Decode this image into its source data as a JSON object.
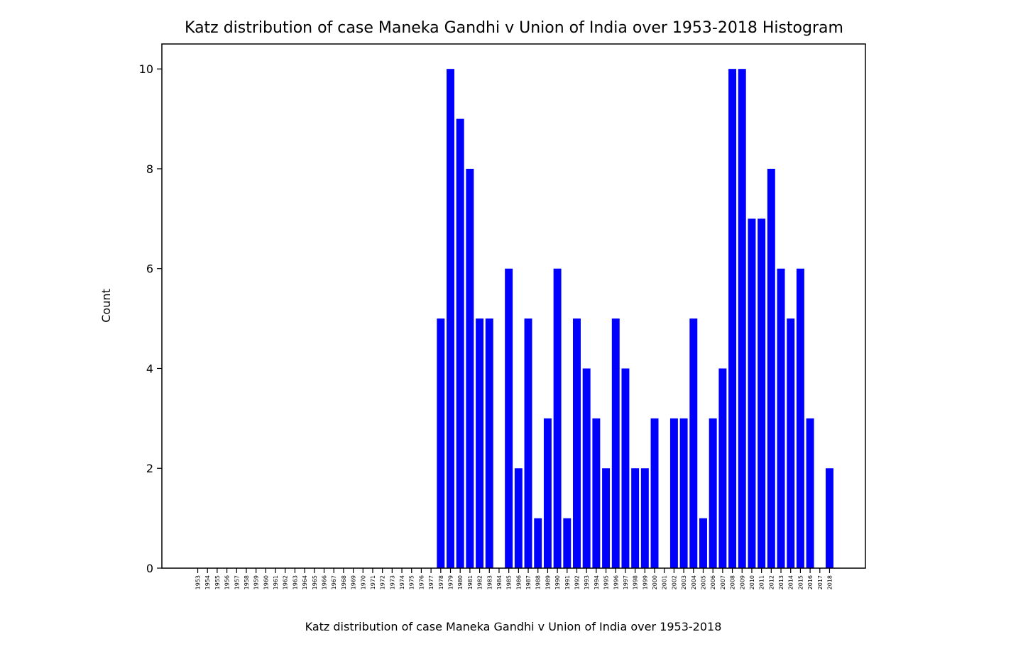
{
  "chart_data": {
    "type": "bar",
    "title": "Katz distribution of case Maneka Gandhi v Union of India over 1953-2018 Histogram",
    "xlabel": "Katz distribution of case Maneka Gandhi v Union of India over 1953-2018",
    "ylabel": "Count",
    "ylim": [
      0,
      10.5
    ],
    "yticks": [
      0,
      2,
      4,
      6,
      8,
      10
    ],
    "bar_color": "#0000ff",
    "grid": false,
    "categories": [
      "1953",
      "1954",
      "1955",
      "1956",
      "1957",
      "1958",
      "1959",
      "1960",
      "1961",
      "1962",
      "1963",
      "1964",
      "1965",
      "1966",
      "1967",
      "1968",
      "1969",
      "1970",
      "1971",
      "1972",
      "1973",
      "1974",
      "1975",
      "1976",
      "1977",
      "1978",
      "1979",
      "1980",
      "1981",
      "1982",
      "1983",
      "1984",
      "1985",
      "1986",
      "1987",
      "1988",
      "1989",
      "1990",
      "1991",
      "1992",
      "1993",
      "1994",
      "1995",
      "1996",
      "1997",
      "1998",
      "1999",
      "2000",
      "2001",
      "2002",
      "2003",
      "2004",
      "2005",
      "2006",
      "2007",
      "2008",
      "2009",
      "2010",
      "2011",
      "2012",
      "2013",
      "2014",
      "2015",
      "2016",
      "2017",
      "2018"
    ],
    "values": [
      0,
      0,
      0,
      0,
      0,
      0,
      0,
      0,
      0,
      0,
      0,
      0,
      0,
      0,
      0,
      0,
      0,
      0,
      0,
      0,
      0,
      0,
      0,
      0,
      0,
      5,
      10,
      9,
      8,
      5,
      5,
      0,
      6,
      2,
      5,
      1,
      3,
      6,
      1,
      5,
      4,
      3,
      2,
      5,
      4,
      2,
      2,
      3,
      0,
      3,
      3,
      5,
      1,
      3,
      4,
      10,
      10,
      7,
      7,
      8,
      6,
      5,
      6,
      3,
      0,
      2
    ]
  }
}
